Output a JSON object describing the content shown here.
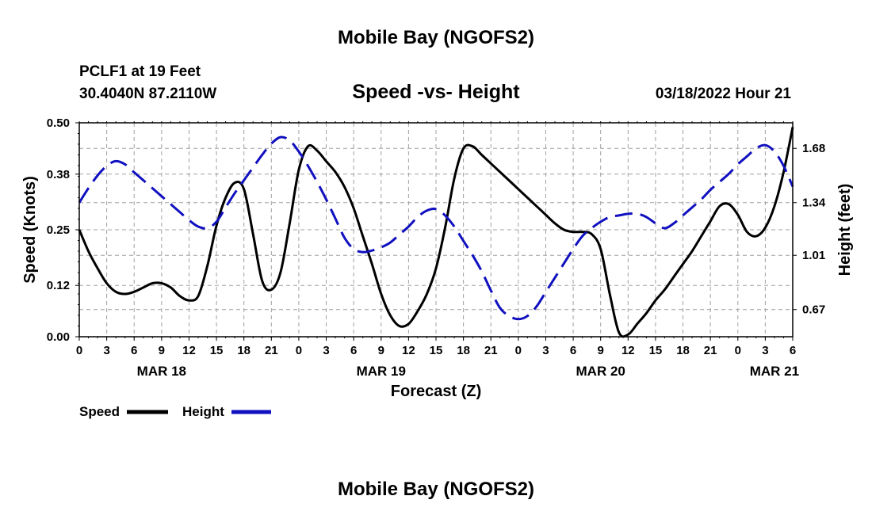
{
  "header": {
    "title": "Mobile Bay (NGOFS2)",
    "station": "PCLF1 at 19 Feet",
    "coords": "30.4040N  87.2110W",
    "subtitle": "Speed -vs- Height",
    "datetime": "03/18/2022 Hour 21"
  },
  "footer": {
    "title": "Mobile Bay (NGOFS2)"
  },
  "legend": {
    "speed_label": "Speed",
    "height_label": "Height"
  },
  "colors": {
    "speed": "#000000",
    "height": "#1010c0",
    "grid": "#a0a0a0"
  },
  "chart_data": {
    "type": "line",
    "title": "Speed -vs- Height",
    "xlabel": "Forecast (Z)",
    "ylabel": "Speed (Knots)",
    "y2label": "Height (feet)",
    "x_range_hours": [
      0,
      78
    ],
    "xticks": [
      {
        "hour": 0,
        "label": "0"
      },
      {
        "hour": 3,
        "label": "3"
      },
      {
        "hour": 6,
        "label": "6"
      },
      {
        "hour": 9,
        "label": "9"
      },
      {
        "hour": 12,
        "label": "12"
      },
      {
        "hour": 15,
        "label": "15"
      },
      {
        "hour": 18,
        "label": "18"
      },
      {
        "hour": 21,
        "label": "21"
      },
      {
        "hour": 24,
        "label": "0"
      },
      {
        "hour": 27,
        "label": "3"
      },
      {
        "hour": 30,
        "label": "6"
      },
      {
        "hour": 33,
        "label": "9"
      },
      {
        "hour": 36,
        "label": "12"
      },
      {
        "hour": 39,
        "label": "15"
      },
      {
        "hour": 42,
        "label": "18"
      },
      {
        "hour": 45,
        "label": "21"
      },
      {
        "hour": 48,
        "label": "0"
      },
      {
        "hour": 51,
        "label": "3"
      },
      {
        "hour": 54,
        "label": "6"
      },
      {
        "hour": 57,
        "label": "9"
      },
      {
        "hour": 60,
        "label": "12"
      },
      {
        "hour": 63,
        "label": "15"
      },
      {
        "hour": 66,
        "label": "18"
      },
      {
        "hour": 69,
        "label": "21"
      },
      {
        "hour": 72,
        "label": "0"
      },
      {
        "hour": 75,
        "label": "3"
      },
      {
        "hour": 78,
        "label": "6"
      }
    ],
    "date_labels": [
      {
        "hour": 9,
        "label": "MAR 18"
      },
      {
        "hour": 33,
        "label": "MAR 19"
      },
      {
        "hour": 57,
        "label": "MAR 20"
      },
      {
        "hour": 76,
        "label": "MAR 21"
      }
    ],
    "ylim": [
      0,
      0.5
    ],
    "yticks": [
      "0.00",
      "0.12",
      "0.25",
      "0.38",
      "0.50"
    ],
    "y2lim": [
      0.5,
      1.84
    ],
    "y2ticks": [
      "0.67",
      "1.01",
      "1.34",
      "1.68"
    ],
    "series": [
      {
        "name": "Speed",
        "axis": "left",
        "x": [
          0,
          1,
          2,
          3,
          4,
          5,
          6,
          7,
          8,
          9,
          10,
          11,
          12,
          13,
          14,
          15,
          16,
          17,
          18,
          19,
          20,
          21,
          22,
          23,
          24,
          25,
          26,
          27,
          28,
          29,
          30,
          31,
          32,
          33,
          34,
          35,
          36,
          37,
          38,
          39,
          40,
          41,
          42,
          43,
          44,
          45,
          46,
          47,
          48,
          49,
          50,
          51,
          52,
          53,
          54,
          55,
          56,
          57,
          58,
          59,
          60,
          61,
          62,
          63,
          64,
          65,
          66,
          67,
          68,
          69,
          70,
          71,
          72,
          73,
          74,
          75,
          76,
          77,
          78
        ],
        "values": [
          0.25,
          0.2,
          0.16,
          0.125,
          0.105,
          0.1,
          0.105,
          0.115,
          0.125,
          0.125,
          0.115,
          0.095,
          0.085,
          0.095,
          0.165,
          0.26,
          0.325,
          0.36,
          0.345,
          0.24,
          0.13,
          0.11,
          0.15,
          0.265,
          0.39,
          0.445,
          0.435,
          0.41,
          0.385,
          0.35,
          0.3,
          0.235,
          0.17,
          0.1,
          0.05,
          0.025,
          0.03,
          0.06,
          0.1,
          0.16,
          0.255,
          0.37,
          0.44,
          0.445,
          0.425,
          0.405,
          0.385,
          0.365,
          0.345,
          0.325,
          0.305,
          0.285,
          0.265,
          0.25,
          0.245,
          0.245,
          0.24,
          0.205,
          0.1,
          0.01,
          0.005,
          0.03,
          0.055,
          0.085,
          0.11,
          0.14,
          0.17,
          0.2,
          0.235,
          0.27,
          0.305,
          0.31,
          0.285,
          0.245,
          0.235,
          0.255,
          0.305,
          0.385,
          0.49
        ]
      },
      {
        "name": "Height",
        "axis": "right",
        "x": [
          0,
          1,
          2,
          3,
          4,
          5,
          6,
          7,
          8,
          9,
          10,
          11,
          12,
          13,
          14,
          15,
          16,
          17,
          18,
          19,
          20,
          21,
          22,
          23,
          24,
          25,
          26,
          27,
          28,
          29,
          30,
          31,
          32,
          33,
          34,
          35,
          36,
          37,
          38,
          39,
          40,
          41,
          42,
          43,
          44,
          45,
          46,
          47,
          48,
          49,
          50,
          51,
          52,
          53,
          54,
          55,
          56,
          57,
          58,
          59,
          60,
          61,
          62,
          63,
          64,
          65,
          66,
          67,
          68,
          69,
          70,
          71,
          72,
          73,
          74,
          75,
          76,
          77,
          78
        ],
        "values": [
          1.34,
          1.43,
          1.51,
          1.57,
          1.6,
          1.58,
          1.53,
          1.48,
          1.43,
          1.38,
          1.33,
          1.28,
          1.23,
          1.19,
          1.18,
          1.22,
          1.31,
          1.4,
          1.48,
          1.56,
          1.64,
          1.71,
          1.75,
          1.73,
          1.66,
          1.57,
          1.47,
          1.36,
          1.24,
          1.12,
          1.05,
          1.03,
          1.04,
          1.06,
          1.09,
          1.14,
          1.19,
          1.25,
          1.29,
          1.3,
          1.26,
          1.19,
          1.1,
          1.01,
          0.91,
          0.79,
          0.68,
          0.63,
          0.61,
          0.63,
          0.69,
          0.78,
          0.87,
          0.96,
          1.05,
          1.13,
          1.18,
          1.22,
          1.25,
          1.26,
          1.27,
          1.27,
          1.25,
          1.21,
          1.18,
          1.21,
          1.26,
          1.31,
          1.36,
          1.42,
          1.47,
          1.52,
          1.58,
          1.63,
          1.68,
          1.7,
          1.66,
          1.57,
          1.44
        ]
      }
    ]
  }
}
